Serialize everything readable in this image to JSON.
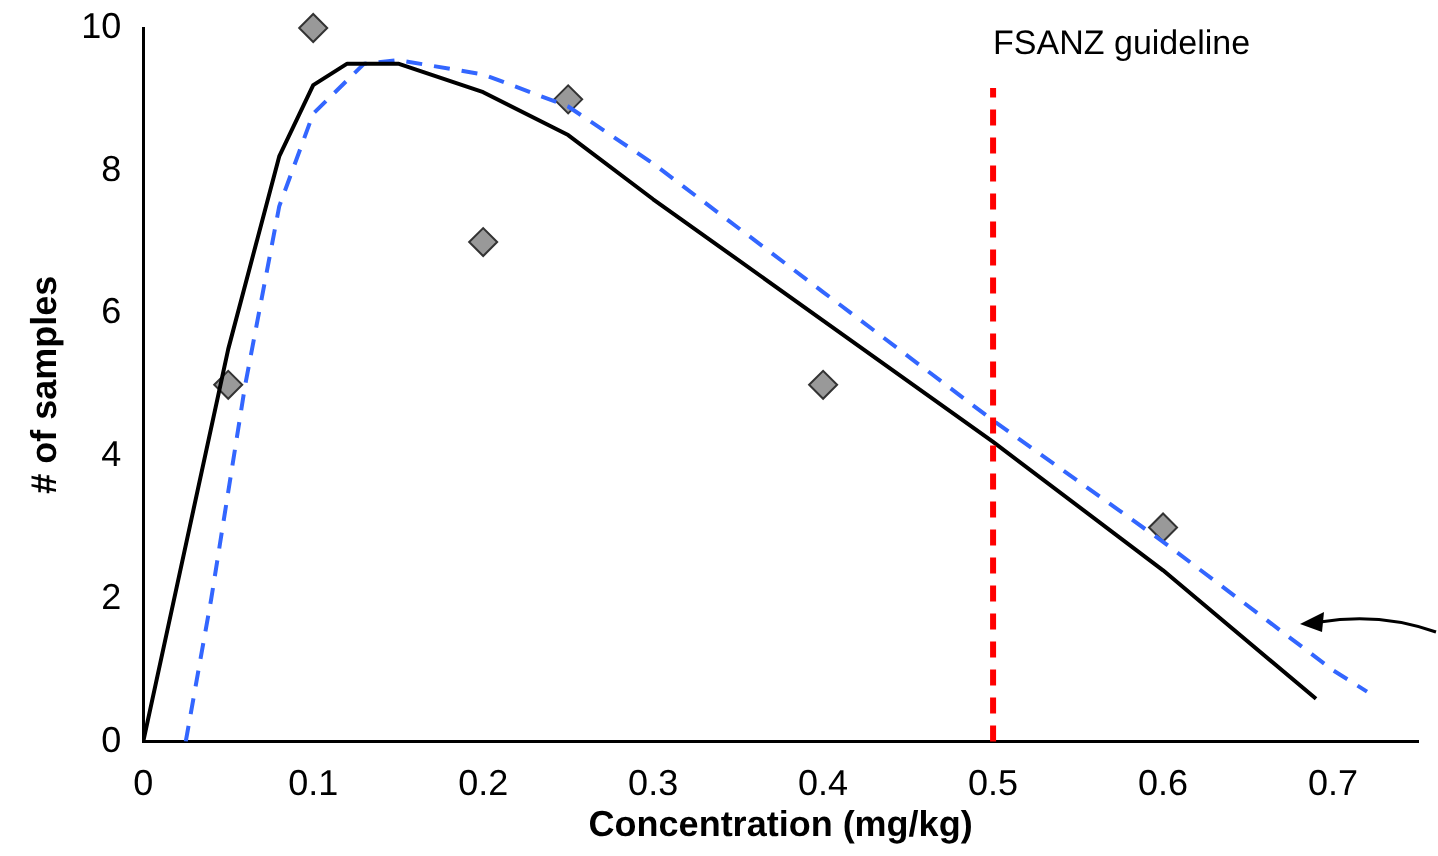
{
  "chart_data": {
    "type": "scatter",
    "xlabel": "Concentration (mg/kg)",
    "ylabel": "# of samples",
    "xlim": [
      0,
      0.75
    ],
    "xticks": [
      0,
      0.1,
      0.2,
      0.3,
      0.4,
      0.5,
      0.6,
      0.7
    ],
    "ylim": [
      0,
      10
    ],
    "yticks": [
      0,
      2,
      4,
      6,
      8,
      10
    ],
    "grid": false,
    "legend": false,
    "series": [
      {
        "type": "line",
        "color": "#000000",
        "line_style": "solid",
        "marker": "none",
        "x": [
          0,
          0.02,
          0.05,
          0.08,
          0.1,
          0.12,
          0.15,
          0.2,
          0.25,
          0.3,
          0.4,
          0.5,
          0.6,
          0.69
        ],
        "values": [
          0,
          2.2,
          5.5,
          8.2,
          9.2,
          9.5,
          9.5,
          9.1,
          8.5,
          7.6,
          5.9,
          4.2,
          2.4,
          0.6
        ]
      },
      {
        "type": "line",
        "color": "#3366ff",
        "line_style": "dashed",
        "marker": "none",
        "x": [
          0.025,
          0.04,
          0.06,
          0.08,
          0.1,
          0.13,
          0.15,
          0.2,
          0.25,
          0.3,
          0.4,
          0.5,
          0.6,
          0.7,
          0.72
        ],
        "values": [
          0,
          2,
          5,
          7.5,
          8.8,
          9.5,
          9.55,
          9.35,
          8.9,
          8.1,
          6.3,
          4.5,
          2.8,
          1,
          0.7
        ]
      },
      {
        "type": "scatter",
        "color": "#999999",
        "marker": "diamond",
        "x": [
          0.05,
          0.1,
          0.2,
          0.25,
          0.4,
          0.6
        ],
        "values": [
          5,
          10,
          7,
          9,
          5,
          3
        ]
      }
    ],
    "ref_lines": [
      {
        "axis": "x",
        "value": 0.5,
        "label": "FSANZ guideline",
        "color": "#ff0000",
        "line_style": "dashed"
      }
    ]
  }
}
